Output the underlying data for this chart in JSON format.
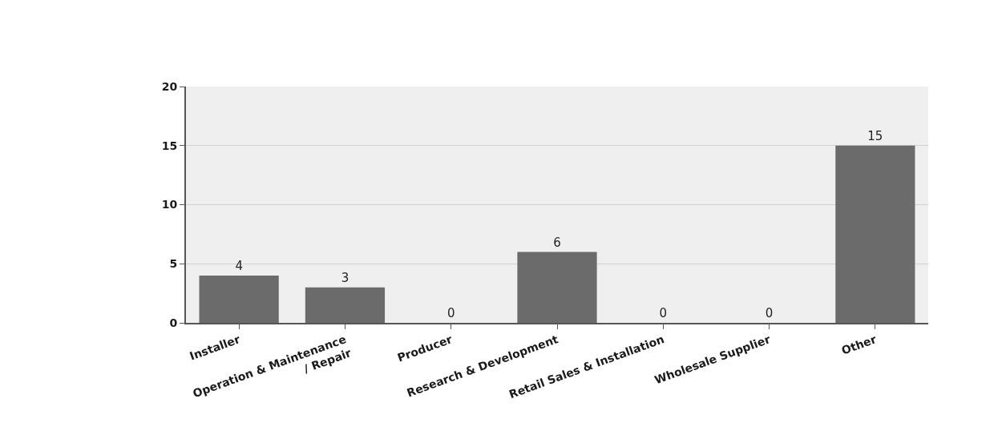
{
  "chart_data": {
    "type": "bar",
    "categories": [
      "Installer",
      "Operation & Maintenance\n/ Repair",
      "Producer",
      "Research & Development",
      "Retail Sales & Installation",
      "Wholesale Supplier",
      "Other"
    ],
    "values": [
      4,
      3,
      0,
      6,
      0,
      0,
      15
    ],
    "color": "#6b6b6b",
    "ylim": [
      0,
      20
    ],
    "yticks": [
      0,
      5,
      10,
      15,
      20
    ],
    "grid": "y",
    "data_labels": true
  }
}
